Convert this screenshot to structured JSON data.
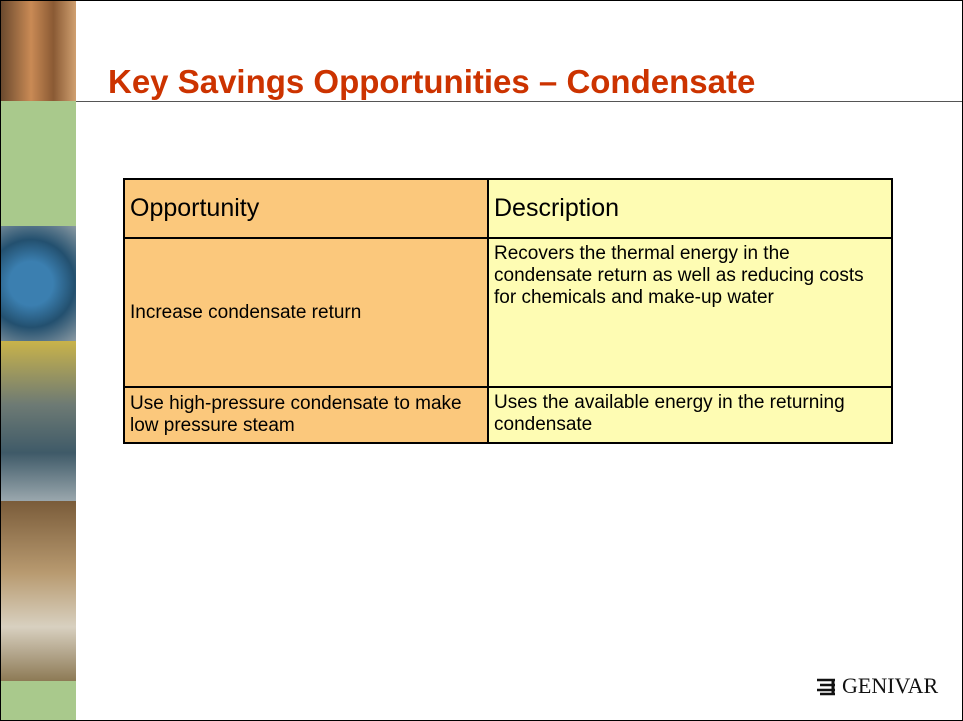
{
  "header": {
    "title": "Key Savings Opportunities – Condensate"
  },
  "table": {
    "columns": [
      "Opportunity",
      "Description"
    ],
    "rows": [
      [
        "Increase condensate return",
        "Recovers the thermal energy in the condensate return as well as reducing costs for chemicals and make-up water"
      ],
      [
        "Use high-pressure condensate to make low pressure steam",
        "Uses the available energy in the returning condensate"
      ]
    ]
  },
  "logo": {
    "text": "GENIVAR"
  }
}
